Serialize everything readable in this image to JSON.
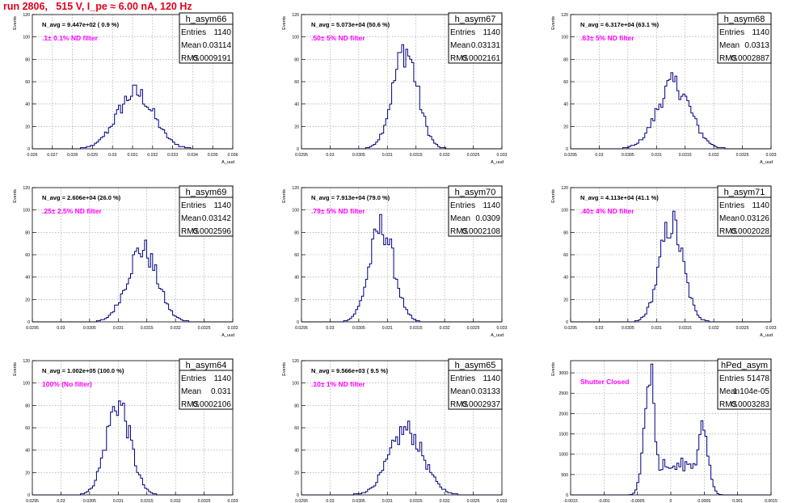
{
  "title": "run 2806,   515 V, I_pe ≈ 6.00 nA, 120 Hz",
  "colors": {
    "title": "#e0001b",
    "histogram": "#000080",
    "note": "#ff00ff",
    "grid": "#999999",
    "frame": "#000000"
  },
  "chart_data": [
    {
      "type": "histogram",
      "name": "h_asym66",
      "ylabel": "Events",
      "xlabel": "A_uud",
      "avg_label": "N_avg = 9.447e+02 ( 0.9 %)",
      "note": ".1± 0.1% ND filter",
      "stats": [
        {
          "label": "Entries",
          "value": "1140"
        },
        {
          "label": "Mean",
          "value": "0.03114"
        },
        {
          "label": "RMS",
          "value": "0.0009191"
        }
      ],
      "xlim": [
        0.026,
        0.036
      ],
      "ylim": [
        0,
        120
      ],
      "x_ticks": [
        "0.026",
        "0.027",
        "0.028",
        "0.029",
        "0.03",
        "0.031",
        "0.032",
        "0.033",
        "0.034",
        "0.035",
        "0.036"
      ],
      "y_ticks": [
        "0",
        "20",
        "40",
        "60",
        "80",
        "100",
        "120"
      ],
      "peak": {
        "mean": 0.03114,
        "sigma": 0.0009191,
        "height": 50
      }
    },
    {
      "type": "histogram",
      "name": "h_asym67",
      "ylabel": "Events",
      "xlabel": "A_uud",
      "avg_label": "N_avg = 5.073e+04 (50.6 %)",
      "note": ".50± 5% ND filter",
      "stats": [
        {
          "label": "Entries",
          "value": "1140"
        },
        {
          "label": "Mean",
          "value": "0.03131"
        },
        {
          "label": "RMS",
          "value": "0.0002161"
        }
      ],
      "xlim": [
        0.0295,
        0.033
      ],
      "ylim": [
        0,
        120
      ],
      "x_ticks": [
        "0.0295",
        "0.03",
        "0.0305",
        "0.031",
        "0.0315",
        "0.032",
        "0.0325",
        "0.033"
      ],
      "y_ticks": [
        "0",
        "20",
        "40",
        "60",
        "80",
        "100",
        "120"
      ],
      "peak": {
        "mean": 0.03131,
        "sigma": 0.0002161,
        "height": 88
      }
    },
    {
      "type": "histogram",
      "name": "h_asym68",
      "ylabel": "Events",
      "xlabel": "A_uud",
      "avg_label": "N_avg = 6.317e+04 (63.1 %)",
      "note": ".63± 5% ND filter",
      "stats": [
        {
          "label": "Entries",
          "value": "1140"
        },
        {
          "label": "Mean",
          "value": "0.0313"
        },
        {
          "label": "RMS",
          "value": "0.0002887"
        }
      ],
      "xlim": [
        0.0295,
        0.033
      ],
      "ylim": [
        0,
        120
      ],
      "x_ticks": [
        "0.0295",
        "0.03",
        "0.0305",
        "0.031",
        "0.0315",
        "0.032",
        "0.0325",
        "0.033"
      ],
      "y_ticks": [
        "0",
        "20",
        "40",
        "60",
        "80",
        "100",
        "120"
      ],
      "peak": {
        "mean": 0.0313,
        "sigma": 0.0002887,
        "height": 58
      }
    },
    {
      "type": "histogram",
      "name": "h_asym69",
      "ylabel": "Events",
      "xlabel": "A_uud",
      "avg_label": "N_avg = 2.606e+04 (26.0 %)",
      "note": ".25± 2.5% ND filter",
      "stats": [
        {
          "label": "Entries",
          "value": "1140"
        },
        {
          "label": "Mean",
          "value": "0.03142"
        },
        {
          "label": "RMS",
          "value": "0.0002596"
        }
      ],
      "xlim": [
        0.0295,
        0.033
      ],
      "ylim": [
        0,
        120
      ],
      "x_ticks": [
        "0.0295",
        "0.03",
        "0.0305",
        "0.031",
        "0.0315",
        "0.032",
        "0.0325",
        "0.033"
      ],
      "y_ticks": [
        "0",
        "20",
        "40",
        "60",
        "80",
        "100",
        "120"
      ],
      "peak": {
        "mean": 0.03142,
        "sigma": 0.0002596,
        "height": 65
      }
    },
    {
      "type": "histogram",
      "name": "h_asym70",
      "ylabel": "Events",
      "xlabel": "A_uud",
      "avg_label": "N_avg = 7.913e+04 (79.0 %)",
      "note": ".79± 5% ND filter",
      "stats": [
        {
          "label": "Entries",
          "value": "1140"
        },
        {
          "label": "Mean",
          "value": "0.0309"
        },
        {
          "label": "RMS",
          "value": "0.0002108"
        }
      ],
      "xlim": [
        0.0295,
        0.033
      ],
      "ylim": [
        0,
        120
      ],
      "x_ticks": [
        "0.0295",
        "0.03",
        "0.0305",
        "0.031",
        "0.0315",
        "0.032",
        "0.0325",
        "0.033"
      ],
      "y_ticks": [
        "0",
        "20",
        "40",
        "60",
        "80",
        "100",
        "120"
      ],
      "peak": {
        "mean": 0.0309,
        "sigma": 0.0002108,
        "height": 85
      }
    },
    {
      "type": "histogram",
      "name": "h_asym71",
      "ylabel": "Events",
      "xlabel": "A_uud",
      "avg_label": "N_avg = 4.113e+04 (41.1 %)",
      "note": ".40± 4% ND filter",
      "stats": [
        {
          "label": "Entries",
          "value": "1140"
        },
        {
          "label": "Mean",
          "value": "0.03126"
        },
        {
          "label": "RMS",
          "value": "0.0002028"
        }
      ],
      "xlim": [
        0.0295,
        0.033
      ],
      "ylim": [
        0,
        120
      ],
      "x_ticks": [
        "0.0295",
        "0.03",
        "0.0305",
        "0.031",
        "0.0315",
        "0.032",
        "0.0325",
        "0.033"
      ],
      "y_ticks": [
        "0",
        "20",
        "40",
        "60",
        "80",
        "100",
        "120"
      ],
      "peak": {
        "mean": 0.03126,
        "sigma": 0.0002028,
        "height": 88
      }
    },
    {
      "type": "histogram",
      "name": "h_asym64",
      "ylabel": "Events",
      "xlabel": "A_uud",
      "avg_label": "N_avg = 1.002e+05 (100.0 %)",
      "note": "100% (No filter)",
      "stats": [
        {
          "label": "Entries",
          "value": "1140"
        },
        {
          "label": "Mean",
          "value": "0.031"
        },
        {
          "label": "RMS",
          "value": "0.0002106"
        }
      ],
      "xlim": [
        0.0295,
        0.033
      ],
      "ylim": [
        0,
        120
      ],
      "x_ticks": [
        "0.0295",
        "0.03",
        "0.0305",
        "0.031",
        "0.0315",
        "0.032",
        "0.0325",
        "0.033"
      ],
      "y_ticks": [
        "0",
        "20",
        "40",
        "60",
        "80",
        "100",
        "120"
      ],
      "peak": {
        "mean": 0.031,
        "sigma": 0.0002106,
        "height": 82
      }
    },
    {
      "type": "histogram",
      "name": "h_asym65",
      "ylabel": "Events",
      "xlabel": "A_uud",
      "avg_label": "N_avg = 9.566e+03 ( 9.5 %)",
      "note": ".10± 1% ND filter",
      "stats": [
        {
          "label": "Entries",
          "value": "1140"
        },
        {
          "label": "Mean",
          "value": "0.03133"
        },
        {
          "label": "RMS",
          "value": "0.0002937"
        }
      ],
      "xlim": [
        0.0295,
        0.033
      ],
      "ylim": [
        0,
        120
      ],
      "x_ticks": [
        "0.0295",
        "0.03",
        "0.0305",
        "0.031",
        "0.0315",
        "0.032",
        "0.0325",
        "0.033"
      ],
      "y_ticks": [
        "0",
        "20",
        "40",
        "60",
        "80",
        "100",
        "120"
      ],
      "peak": {
        "mean": 0.03133,
        "sigma": 0.0002937,
        "height": 58
      }
    },
    {
      "type": "histogram",
      "name": "hPed_asym",
      "ylabel": "Events",
      "xlabel": "A_uud",
      "avg_label": "",
      "note": "Shutter Closed",
      "stats": [
        {
          "label": "Entries",
          "value": "51478"
        },
        {
          "label": "Mean",
          "value": "1.104e-05"
        },
        {
          "label": "RMS",
          "value": "0.0003283"
        }
      ],
      "xlim": [
        -0.0015,
        0.0015
      ],
      "ylim": [
        0,
        3300
      ],
      "x_ticks": [
        "-0.0015",
        "-0.001",
        "-0.0005",
        "0",
        "0.0005",
        "0.001",
        "0.0015"
      ],
      "y_ticks": [
        "0",
        "500",
        "1000",
        "1500",
        "2000",
        "2500",
        "3000"
      ],
      "peaks": [
        {
          "mean": -0.00032,
          "sigma": 8e-05,
          "height": 3150
        },
        {
          "mean": 0.00048,
          "sigma": 8e-05,
          "height": 1700
        }
      ],
      "baseline": {
        "from": -0.0003,
        "to": 0.0005,
        "level": 750
      }
    }
  ]
}
